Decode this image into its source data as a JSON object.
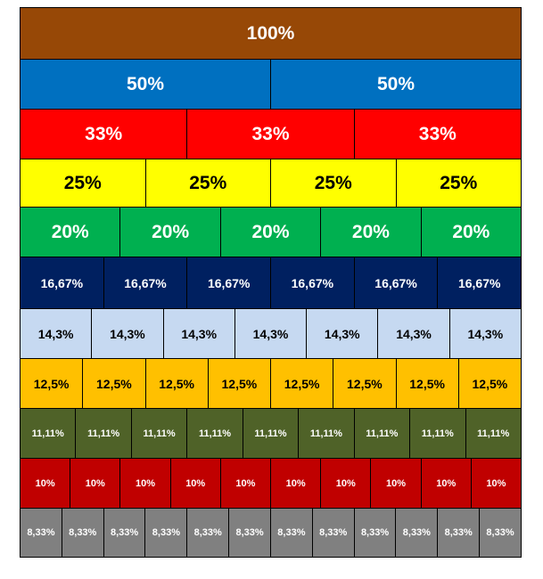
{
  "rows": [
    {
      "label": "100%",
      "count": 1,
      "bg": "#974806",
      "fg": "#ffffff"
    },
    {
      "label": "50%",
      "count": 2,
      "bg": "#0070c0",
      "fg": "#ffffff"
    },
    {
      "label": "33%",
      "count": 3,
      "bg": "#ff0000",
      "fg": "#ffffff"
    },
    {
      "label": "25%",
      "count": 4,
      "bg": "#ffff00",
      "fg": "#000000"
    },
    {
      "label": "20%",
      "count": 5,
      "bg": "#00b050",
      "fg": "#ffffff"
    },
    {
      "label": "16,67%",
      "count": 6,
      "bg": "#002060",
      "fg": "#ffffff"
    },
    {
      "label": "14,3%",
      "count": 7,
      "bg": "#c6d9f1",
      "fg": "#000000"
    },
    {
      "label": "12,5%",
      "count": 8,
      "bg": "#ffc000",
      "fg": "#000000"
    },
    {
      "label": "11,11%",
      "count": 9,
      "bg": "#4f6228",
      "fg": "#ffffff"
    },
    {
      "label": "10%",
      "count": 10,
      "bg": "#c00000",
      "fg": "#ffffff"
    },
    {
      "label": "8,33%",
      "count": 12,
      "bg": "#808080",
      "fg": "#ffffff"
    }
  ]
}
